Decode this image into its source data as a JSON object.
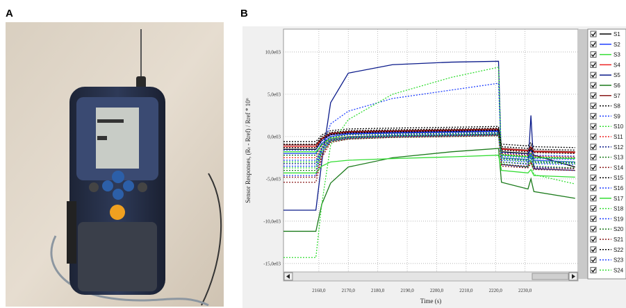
{
  "panel_labels": [
    "A",
    "B"
  ],
  "chart_data": {
    "type": "line",
    "x_label": "Time (s)",
    "y_label": "Sensor Responses, (Rₜ - Rref) / Rref * 10⁶",
    "x": [
      2148,
      2159,
      2161,
      2164,
      2170,
      2185,
      2205,
      2221,
      2222,
      2231,
      2232,
      2233,
      2247
    ],
    "xlim": [
      2148,
      2248
    ],
    "ylim": [
      -16000,
      12700
    ],
    "xticks": [
      {
        "value": 2160,
        "label": "2160,0"
      },
      {
        "value": 2170,
        "label": "2170,0"
      },
      {
        "value": 2180,
        "label": "2180,0"
      },
      {
        "value": 2190,
        "label": "2190,0"
      },
      {
        "value": 2200,
        "label": "2200,0"
      },
      {
        "value": 2210,
        "label": "2210,0"
      },
      {
        "value": 2220,
        "label": "2220,0"
      },
      {
        "value": 2230,
        "label": "2230,0"
      }
    ],
    "yticks": [
      {
        "value": 10000,
        "label": "10,0e03"
      },
      {
        "value": 5000,
        "label": "5,0e03"
      },
      {
        "value": 0,
        "label": "0,0e03"
      },
      {
        "value": -5000,
        "label": "-5,0e03"
      },
      {
        "value": -10000,
        "label": "-10,0e03"
      },
      {
        "value": -15000,
        "label": "-15,0e03"
      }
    ],
    "grid": true,
    "legend": "right",
    "series": [
      {
        "name": "S1",
        "color": "#000000",
        "dash": false,
        "values": [
          -1500,
          -1500,
          -500,
          200,
          400,
          500,
          600,
          700,
          -1800,
          -2000,
          -1500,
          -2200,
          -3600
        ]
      },
      {
        "name": "S2",
        "color": "#1f3fff",
        "dash": false,
        "values": [
          -2000,
          -2000,
          -800,
          0,
          300,
          400,
          500,
          600,
          -2500,
          -2700,
          -2200,
          -2800,
          -3000
        ]
      },
      {
        "name": "S3",
        "color": "#33dd33",
        "dash": false,
        "values": [
          -1800,
          -1800,
          -1000,
          -200,
          0,
          100,
          200,
          300,
          -2200,
          -2400,
          -2000,
          -2500,
          -2600
        ]
      },
      {
        "name": "S4",
        "color": "#ee2222",
        "dash": false,
        "values": [
          -1200,
          -1200,
          -300,
          300,
          500,
          600,
          700,
          800,
          -1500,
          -1700,
          -1300,
          -1800,
          -1900
        ]
      },
      {
        "name": "S5",
        "color": "#0a1a8a",
        "dash": false,
        "values": [
          -8700,
          -8700,
          -3000,
          4000,
          7500,
          8500,
          8800,
          8900,
          -3300,
          -3600,
          2500,
          -3800,
          -4000
        ]
      },
      {
        "name": "S6",
        "color": "#1a7a1a",
        "dash": false,
        "values": [
          -11200,
          -11200,
          -8000,
          -5500,
          -3600,
          -2500,
          -1800,
          -1400,
          -5400,
          -6200,
          -5000,
          -6500,
          -7300
        ]
      },
      {
        "name": "S7",
        "color": "#8a1a1a",
        "dash": false,
        "values": [
          -1000,
          -1000,
          -200,
          400,
          600,
          700,
          800,
          900,
          -1400,
          -1600,
          -1200,
          -1700,
          -1800
        ]
      },
      {
        "name": "S8",
        "color": "#000000",
        "dash": true,
        "values": [
          -600,
          -600,
          200,
          700,
          900,
          1000,
          1100,
          1200,
          -900,
          -1100,
          -700,
          -1200,
          -1300
        ]
      },
      {
        "name": "S9",
        "color": "#1f3fff",
        "dash": true,
        "values": [
          -4600,
          -4600,
          -1500,
          1500,
          3000,
          4500,
          5500,
          6300,
          -3000,
          -3300,
          -2500,
          -3600,
          -3800
        ]
      },
      {
        "name": "S10",
        "color": "#33dd33",
        "dash": true,
        "values": [
          -14300,
          -14300,
          -8000,
          -1000,
          2000,
          5000,
          7000,
          8200,
          -3200,
          -3600,
          -2800,
          -4500,
          -5600
        ]
      },
      {
        "name": "S11",
        "color": "#ee2222",
        "dash": true,
        "values": [
          -2500,
          -2500,
          -1200,
          -300,
          0,
          100,
          200,
          300,
          -2000,
          -2200,
          -1800,
          -2300,
          -2400
        ]
      },
      {
        "name": "S12",
        "color": "#0a1a8a",
        "dash": true,
        "values": [
          -3200,
          -3200,
          -1500,
          -400,
          -100,
          100,
          200,
          300,
          -2600,
          -2800,
          -2400,
          -3000,
          -3100
        ]
      },
      {
        "name": "S13",
        "color": "#1a7a1a",
        "dash": true,
        "values": [
          -4000,
          -4000,
          -2000,
          -600,
          -300,
          -100,
          0,
          100,
          -3000,
          -3200,
          -2800,
          -3500,
          -3700
        ]
      },
      {
        "name": "S14",
        "color": "#8a1a1a",
        "dash": true,
        "values": [
          -5400,
          -5400,
          -2500,
          -700,
          -300,
          -100,
          0,
          100,
          -3500,
          -3700,
          -3200,
          -3900,
          -4000
        ]
      },
      {
        "name": "S15",
        "color": "#000000",
        "dash": true,
        "values": [
          -900,
          -900,
          0,
          500,
          700,
          800,
          900,
          1000,
          -1200,
          -1400,
          -1000,
          -1500,
          -1600
        ]
      },
      {
        "name": "S16",
        "color": "#1f3fff",
        "dash": true,
        "values": [
          -2800,
          -2800,
          -1300,
          -300,
          0,
          200,
          300,
          400,
          -2300,
          -2500,
          -2100,
          -2600,
          -2700
        ]
      },
      {
        "name": "S17",
        "color": "#33dd33",
        "dash": false,
        "values": [
          -4300,
          -4300,
          -3500,
          -3000,
          -2800,
          -2600,
          -2400,
          -2200,
          -4000,
          -4300,
          -3900,
          -4600,
          -4800
        ]
      },
      {
        "name": "S18",
        "color": "#33dd33",
        "dash": true,
        "values": [
          -3700,
          -3700,
          -1700,
          -500,
          -200,
          0,
          100,
          200,
          -2700,
          -2900,
          -2500,
          -3100,
          -3200
        ]
      },
      {
        "name": "S19",
        "color": "#1f3fff",
        "dash": true,
        "values": [
          -1600,
          -1600,
          -500,
          200,
          400,
          500,
          600,
          700,
          -1900,
          -2100,
          -1700,
          -2200,
          -2300
        ]
      },
      {
        "name": "S20",
        "color": "#1a7a1a",
        "dash": true,
        "values": [
          -2200,
          -2200,
          -900,
          -100,
          200,
          300,
          400,
          500,
          -2100,
          -2300,
          -1900,
          -2400,
          -2500
        ]
      },
      {
        "name": "S21",
        "color": "#8a1a1a",
        "dash": true,
        "values": [
          -4800,
          -4800,
          -2200,
          -500,
          -200,
          0,
          100,
          200,
          -3300,
          -3500,
          -3000,
          -3700,
          -3800
        ]
      },
      {
        "name": "S22",
        "color": "#000000",
        "dash": true,
        "values": [
          -1300,
          -1300,
          -300,
          300,
          500,
          600,
          700,
          800,
          -1600,
          -1800,
          -1400,
          -1900,
          -2000
        ]
      },
      {
        "name": "S23",
        "color": "#1f3fff",
        "dash": true,
        "values": [
          -3500,
          -3500,
          -1800,
          -500,
          -200,
          0,
          100,
          200,
          -2800,
          -3000,
          -2600,
          -3200,
          -3300
        ]
      },
      {
        "name": "S24",
        "color": "#33dd33",
        "dash": true,
        "values": [
          -3000,
          -3000,
          -1400,
          -400,
          -100,
          100,
          200,
          300,
          -2500,
          -2700,
          -2300,
          -2900,
          -3000
        ]
      }
    ]
  }
}
